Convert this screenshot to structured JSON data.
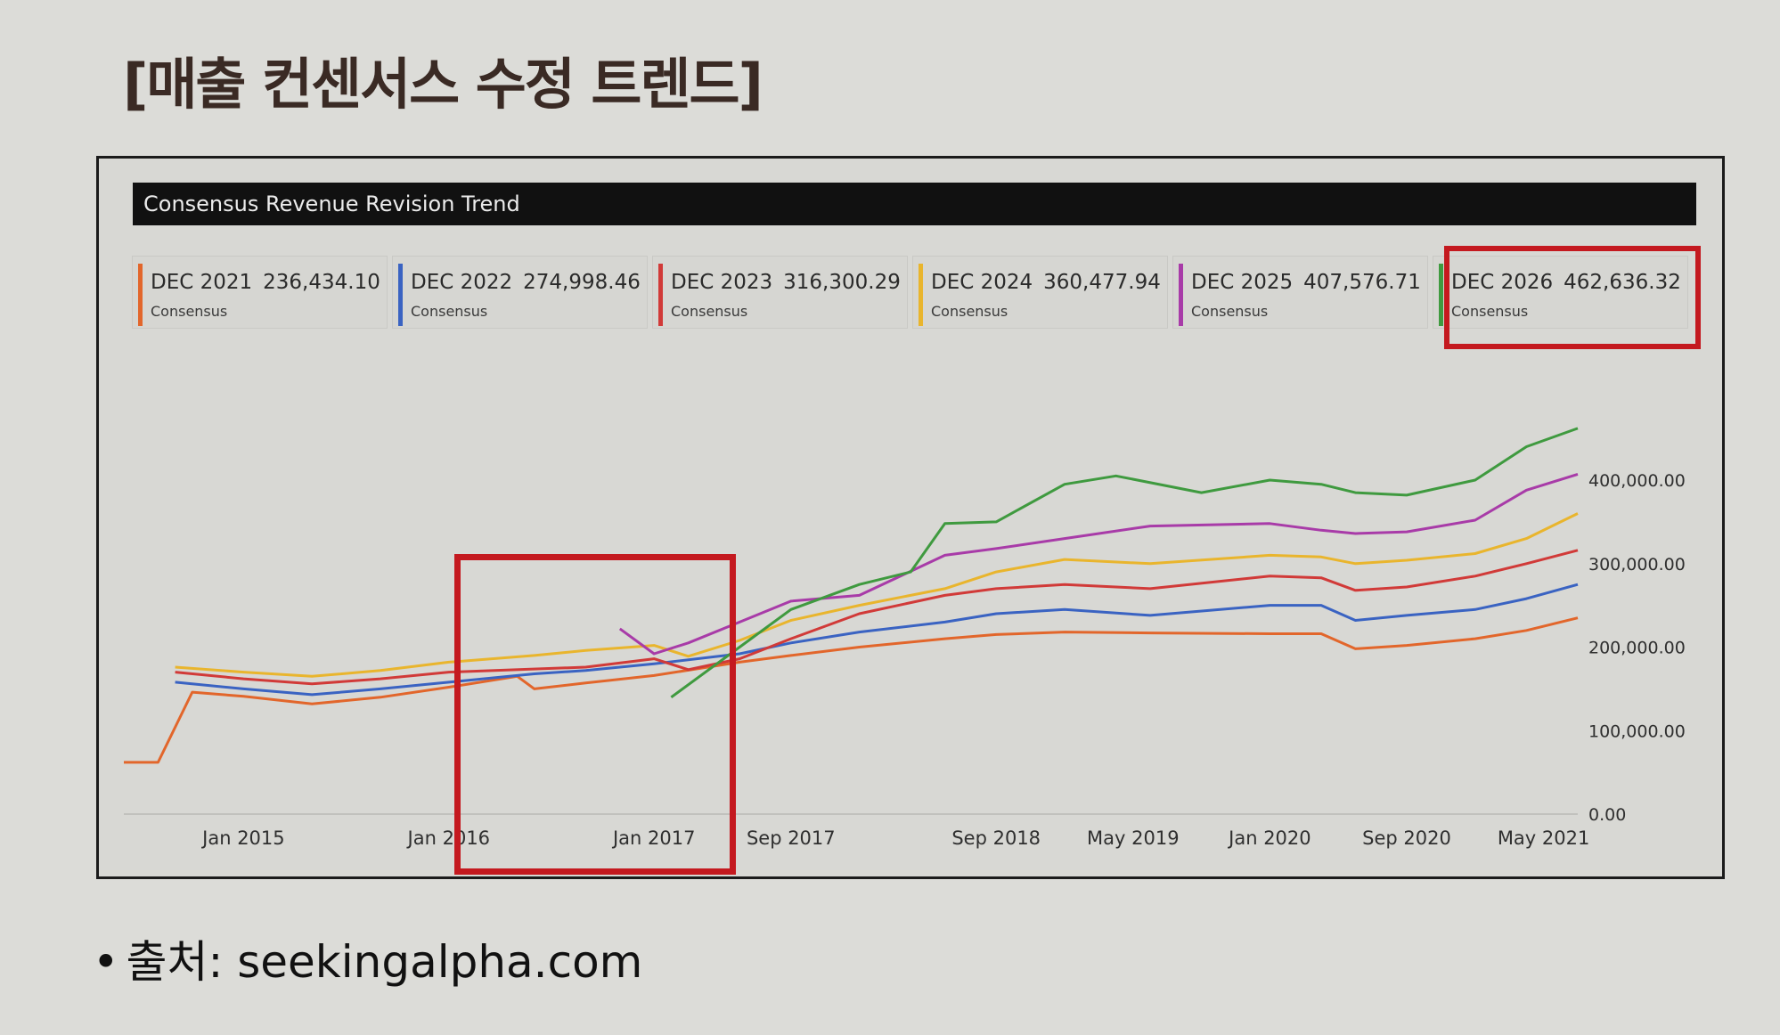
{
  "page": {
    "title": "[매출 컨센서스 수정 트렌드]",
    "source_bullet": "•",
    "source": "출처: seekingalpha.com"
  },
  "chart_data": {
    "type": "line",
    "title": "Consensus Revenue Revision Trend",
    "legend_placement": "top",
    "grid": false,
    "legend": [
      {
        "label": "DEC 2021",
        "value": "236,434.10",
        "sub": "Consensus",
        "color": "#e2662b"
      },
      {
        "label": "DEC 2022",
        "value": "274,998.46",
        "sub": "Consensus",
        "color": "#3a63c2"
      },
      {
        "label": "DEC 2023",
        "value": "316,300.29",
        "sub": "Consensus",
        "color": "#d13a38"
      },
      {
        "label": "DEC 2024",
        "value": "360,477.94",
        "sub": "Consensus",
        "color": "#e9b52d"
      },
      {
        "label": "DEC 2025",
        "value": "407,576.71",
        "sub": "Consensus",
        "color": "#a83ba8"
      },
      {
        "label": "DEC 2026",
        "value": "462,636.32",
        "sub": "Consensus",
        "color": "#3f9a3f"
      }
    ],
    "x_tick_labels": [
      "Jan 2015",
      "Jan 2016",
      "Jan 2017",
      "Sep 2017",
      "Sep 2018",
      "May 2019",
      "Jan 2020",
      "Sep 2020",
      "May 2021"
    ],
    "x_ticks_at": [
      "2015-01",
      "2016-01",
      "2017-01",
      "2017-09",
      "2018-09",
      "2019-05",
      "2020-01",
      "2020-09",
      "2021-05"
    ],
    "x_range": [
      "2014-06",
      "2021-07"
    ],
    "y_tick_labels": [
      "0.00",
      "100,000.00",
      "200,000.00",
      "300,000.00",
      "400,000.00"
    ],
    "y_ticks_at": [
      0,
      100000,
      200000,
      300000,
      400000
    ],
    "ylim": [
      0,
      480000
    ],
    "series": [
      {
        "name": "DEC 2021",
        "color": "#e2662b",
        "x": [
          "2014-06",
          "2014-08",
          "2014-10",
          "2015-01",
          "2015-05",
          "2015-09",
          "2016-01",
          "2016-05",
          "2016-06",
          "2016-09",
          "2017-01",
          "2017-06",
          "2017-09",
          "2018-01",
          "2018-06",
          "2018-09",
          "2019-01",
          "2019-06",
          "2020-01",
          "2020-04",
          "2020-06",
          "2020-09",
          "2021-01",
          "2021-04",
          "2021-07"
        ],
        "y": [
          62000,
          62000,
          146000,
          141000,
          132000,
          140000,
          152000,
          165000,
          150000,
          157000,
          166000,
          182000,
          190000,
          200000,
          210000,
          215000,
          218000,
          217000,
          216000,
          216000,
          198000,
          202000,
          210000,
          220000,
          235000
        ]
      },
      {
        "name": "DEC 2022",
        "color": "#3a63c2",
        "x": [
          "2014-09",
          "2015-01",
          "2015-05",
          "2015-09",
          "2016-01",
          "2016-06",
          "2016-09",
          "2017-01",
          "2017-06",
          "2017-09",
          "2018-01",
          "2018-06",
          "2018-09",
          "2019-01",
          "2019-06",
          "2020-01",
          "2020-04",
          "2020-06",
          "2020-09",
          "2021-01",
          "2021-04",
          "2021-07"
        ],
        "y": [
          158000,
          150000,
          143000,
          150000,
          158000,
          168000,
          172000,
          180000,
          192000,
          205000,
          218000,
          230000,
          240000,
          245000,
          238000,
          250000,
          250000,
          232000,
          238000,
          245000,
          258000,
          275000
        ]
      },
      {
        "name": "DEC 2023",
        "color": "#d13a38",
        "x": [
          "2014-09",
          "2015-01",
          "2015-05",
          "2015-09",
          "2016-01",
          "2016-09",
          "2017-01",
          "2017-03",
          "2017-06",
          "2017-09",
          "2018-01",
          "2018-06",
          "2018-09",
          "2019-01",
          "2019-06",
          "2020-01",
          "2020-04",
          "2020-06",
          "2020-09",
          "2021-01",
          "2021-04",
          "2021-07"
        ],
        "y": [
          170000,
          162000,
          156000,
          162000,
          170000,
          176000,
          186000,
          173000,
          186000,
          210000,
          240000,
          262000,
          270000,
          275000,
          270000,
          285000,
          283000,
          268000,
          272000,
          285000,
          300000,
          316000
        ]
      },
      {
        "name": "DEC 2024",
        "color": "#e9b52d",
        "x": [
          "2014-09",
          "2015-01",
          "2015-05",
          "2015-09",
          "2016-01",
          "2016-06",
          "2016-09",
          "2017-01",
          "2017-03",
          "2017-06",
          "2017-09",
          "2018-01",
          "2018-06",
          "2018-09",
          "2019-01",
          "2019-06",
          "2020-01",
          "2020-04",
          "2020-06",
          "2020-09",
          "2021-01",
          "2021-04",
          "2021-07"
        ],
        "y": [
          176000,
          170000,
          165000,
          172000,
          182000,
          190000,
          196000,
          202000,
          189000,
          208000,
          232000,
          250000,
          270000,
          290000,
          305000,
          300000,
          310000,
          308000,
          300000,
          304000,
          312000,
          330000,
          360000
        ]
      },
      {
        "name": "DEC 2025",
        "color": "#a83ba8",
        "x": [
          "2016-11",
          "2017-01",
          "2017-03",
          "2017-06",
          "2017-09",
          "2018-01",
          "2018-06",
          "2018-09",
          "2019-01",
          "2019-06",
          "2020-01",
          "2020-04",
          "2020-06",
          "2020-09",
          "2021-01",
          "2021-04",
          "2021-07"
        ],
        "y": [
          222000,
          192000,
          205000,
          230000,
          255000,
          262000,
          310000,
          318000,
          330000,
          345000,
          348000,
          340000,
          336000,
          338000,
          352000,
          388000,
          407000
        ]
      },
      {
        "name": "DEC 2026",
        "color": "#3f9a3f",
        "x": [
          "2017-02",
          "2017-06",
          "2017-09",
          "2018-01",
          "2018-04",
          "2018-06",
          "2018-09",
          "2019-01",
          "2019-04",
          "2019-09",
          "2020-01",
          "2020-04",
          "2020-06",
          "2020-09",
          "2021-01",
          "2021-04",
          "2021-07"
        ],
        "y": [
          140000,
          200000,
          245000,
          275000,
          290000,
          348000,
          350000,
          395000,
          405000,
          385000,
          400000,
          395000,
          385000,
          382000,
          400000,
          440000,
          462000
        ]
      }
    ]
  }
}
